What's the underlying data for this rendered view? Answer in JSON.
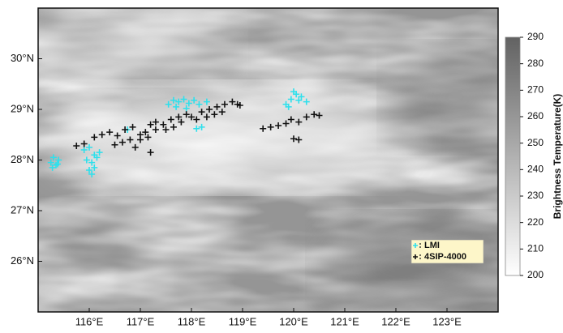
{
  "chart_data": {
    "type": "scatter",
    "xlim": [
      115,
      124
    ],
    "xticks": [
      {
        "value": 116,
        "label": "116°E"
      },
      {
        "value": 117,
        "label": "117°E"
      },
      {
        "value": 118,
        "label": "118°E"
      },
      {
        "value": 119,
        "label": "119°E"
      },
      {
        "value": 120,
        "label": "120°E"
      },
      {
        "value": 121,
        "label": "121°E"
      },
      {
        "value": 122,
        "label": "122°E"
      },
      {
        "value": 123,
        "label": "123°E"
      }
    ],
    "ylim": [
      25,
      31
    ],
    "yticks": [
      {
        "value": 26,
        "label": "26°N"
      },
      {
        "value": 27,
        "label": "27°N"
      },
      {
        "value": 28,
        "label": "28°N"
      },
      {
        "value": 29,
        "label": "29°N"
      },
      {
        "value": 30,
        "label": "30°N"
      }
    ],
    "colorbar": {
      "label": "Brightness Temperature(K)",
      "lim": [
        200,
        290
      ],
      "ticks": [
        200,
        210,
        220,
        230,
        240,
        250,
        260,
        270,
        280,
        290
      ]
    },
    "series": [
      {
        "name": "LMI",
        "color": "#2ee0ec",
        "x": [
          115.25,
          115.3,
          115.35,
          115.4,
          115.28,
          115.38,
          115.9,
          116.0,
          116.1,
          116.2,
          115.95,
          116.05,
          116.15,
          116.0,
          116.1,
          116.05,
          116.75,
          117.55,
          117.65,
          117.75,
          117.85,
          117.95,
          118.05,
          118.15,
          118.3,
          117.7,
          117.9,
          118.1,
          118.2,
          119.85,
          119.95,
          120.05,
          120.15,
          120.25,
          120.0,
          120.1,
          119.9
        ],
        "y": [
          27.95,
          28.05,
          27.9,
          28.0,
          27.85,
          27.92,
          28.2,
          28.25,
          28.1,
          28.15,
          28.0,
          27.95,
          28.05,
          27.8,
          27.85,
          27.72,
          28.6,
          29.1,
          29.18,
          29.15,
          29.2,
          29.12,
          29.18,
          29.1,
          29.15,
          29.05,
          29.02,
          28.62,
          28.65,
          29.1,
          29.2,
          29.3,
          29.25,
          29.15,
          29.35,
          29.18,
          29.05
        ]
      },
      {
        "name": "4SIP-4000",
        "color": "#111111",
        "x": [
          115.75,
          115.9,
          116.1,
          116.25,
          116.4,
          116.55,
          116.7,
          116.85,
          116.5,
          116.65,
          116.8,
          117.0,
          117.1,
          117.2,
          117.3,
          117.0,
          117.15,
          117.3,
          117.45,
          117.6,
          117.75,
          117.9,
          117.5,
          117.65,
          117.8,
          118.0,
          118.1,
          118.2,
          118.35,
          118.5,
          118.65,
          118.8,
          118.95,
          118.3,
          118.45,
          118.6,
          117.2,
          116.9,
          119.4,
          119.55,
          119.7,
          119.85,
          119.95,
          120.1,
          120.25,
          120.4,
          120.5,
          120.0,
          120.1,
          118.9
        ],
        "y": [
          28.28,
          28.32,
          28.45,
          28.5,
          28.55,
          28.48,
          28.6,
          28.65,
          28.3,
          28.35,
          28.4,
          28.5,
          28.55,
          28.7,
          28.75,
          28.4,
          28.45,
          28.6,
          28.7,
          28.8,
          28.85,
          28.9,
          28.6,
          28.65,
          28.75,
          28.85,
          28.8,
          28.95,
          29.0,
          29.05,
          29.1,
          29.15,
          29.08,
          28.85,
          28.9,
          28.95,
          28.15,
          28.25,
          28.62,
          28.65,
          28.68,
          28.72,
          28.8,
          28.75,
          28.85,
          28.9,
          28.88,
          28.42,
          28.4,
          29.1
        ]
      }
    ]
  }
}
